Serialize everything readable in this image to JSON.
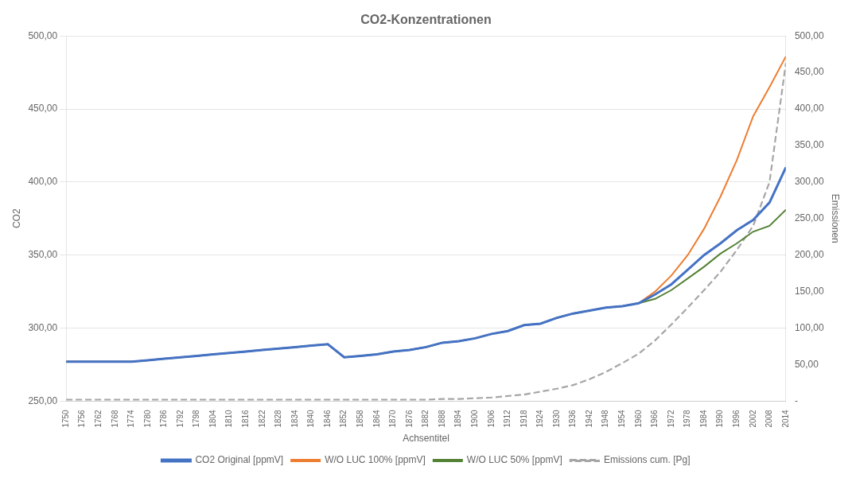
{
  "chart_data": {
    "type": "line",
    "title": "CO2-Konzentrationen",
    "xlabel": "Achsentitel",
    "ylabel": "CO2",
    "y2label": "Emissionen",
    "x": [
      1750,
      1756,
      1762,
      1768,
      1774,
      1780,
      1786,
      1792,
      1798,
      1804,
      1810,
      1816,
      1822,
      1828,
      1834,
      1840,
      1846,
      1852,
      1858,
      1864,
      1870,
      1876,
      1882,
      1888,
      1894,
      1900,
      1906,
      1912,
      1918,
      1924,
      1930,
      1936,
      1942,
      1948,
      1954,
      1960,
      1966,
      1972,
      1978,
      1984,
      1990,
      1996,
      2002,
      2008,
      2014
    ],
    "xlim": [
      1750,
      2014
    ],
    "xticks": [
      1750,
      1756,
      1762,
      1768,
      1774,
      1780,
      1786,
      1792,
      1798,
      1804,
      1810,
      1816,
      1822,
      1828,
      1834,
      1840,
      1846,
      1852,
      1858,
      1864,
      1870,
      1876,
      1882,
      1888,
      1894,
      1900,
      1906,
      1912,
      1918,
      1924,
      1930,
      1936,
      1942,
      1948,
      1954,
      1960,
      1966,
      1972,
      1978,
      1984,
      1990,
      1996,
      2002,
      2008,
      2014
    ],
    "ylim": [
      250,
      500
    ],
    "yticks": [
      {
        "value": 250,
        "label": "250,00"
      },
      {
        "value": 300,
        "label": "300,00"
      },
      {
        "value": 350,
        "label": "350,00"
      },
      {
        "value": 400,
        "label": "400,00"
      },
      {
        "value": 450,
        "label": "450,00"
      },
      {
        "value": 500,
        "label": "500,00"
      }
    ],
    "y2lim": [
      0,
      500
    ],
    "y2ticks": [
      {
        "value": 0,
        "label": "-"
      },
      {
        "value": 50,
        "label": "50,00"
      },
      {
        "value": 100,
        "label": "100,00"
      },
      {
        "value": 150,
        "label": "150,00"
      },
      {
        "value": 200,
        "label": "200,00"
      },
      {
        "value": 250,
        "label": "250,00"
      },
      {
        "value": 300,
        "label": "300,00"
      },
      {
        "value": 350,
        "label": "350,00"
      },
      {
        "value": 400,
        "label": "400,00"
      },
      {
        "value": 450,
        "label": "450,00"
      },
      {
        "value": 500,
        "label": "500,00"
      }
    ],
    "grid": "y",
    "legend": "bottom",
    "series": [
      {
        "name": "CO2 Original [ppmV]",
        "color": "#4472C4",
        "line_style": "solid",
        "values": [
          277,
          277,
          277,
          277,
          277,
          278,
          279,
          280,
          281,
          282,
          283,
          284,
          285,
          286,
          287,
          288,
          289,
          280,
          281,
          282,
          284,
          285,
          287,
          290,
          291,
          293,
          296,
          298,
          302,
          303,
          307,
          310,
          312,
          314,
          315,
          317,
          323,
          330,
          340,
          350,
          358,
          367,
          374,
          386,
          410
        ]
      },
      {
        "name": "W/O LUC 100% [ppmV]",
        "color": "#ED7D31",
        "line_style": "solid",
        "values": [
          277,
          277,
          277,
          277,
          277,
          278,
          279,
          280,
          281,
          282,
          283,
          284,
          285,
          286,
          287,
          288,
          289,
          280,
          281,
          282,
          284,
          285,
          287,
          290,
          291,
          293,
          296,
          298,
          302,
          303,
          307,
          310,
          312,
          314,
          315,
          317,
          325,
          336,
          350,
          368,
          390,
          415,
          445,
          465,
          486
        ]
      },
      {
        "name": "W/O LUC 50% [ppmV]",
        "color": "#548235",
        "line_style": "solid",
        "values": [
          277,
          277,
          277,
          277,
          277,
          278,
          279,
          280,
          281,
          282,
          283,
          284,
          285,
          286,
          287,
          288,
          289,
          280,
          281,
          282,
          284,
          285,
          287,
          290,
          291,
          293,
          296,
          298,
          302,
          303,
          307,
          310,
          312,
          314,
          315,
          317,
          320,
          326,
          334,
          342,
          351,
          358,
          366,
          370,
          381
        ]
      },
      {
        "name": "Emissions cum. [Pg]",
        "color": "#A6A6A6",
        "line_style": "dashed",
        "axis": "y2",
        "values": [
          2,
          2,
          2,
          2,
          2,
          2,
          2,
          2,
          2,
          2,
          2,
          2,
          2,
          2,
          2,
          2,
          2,
          2,
          2,
          2,
          2,
          2,
          2,
          3,
          3,
          4,
          5,
          7,
          9,
          13,
          17,
          22,
          30,
          40,
          52,
          65,
          83,
          105,
          128,
          152,
          177,
          207,
          240,
          300,
          463
        ]
      }
    ]
  }
}
